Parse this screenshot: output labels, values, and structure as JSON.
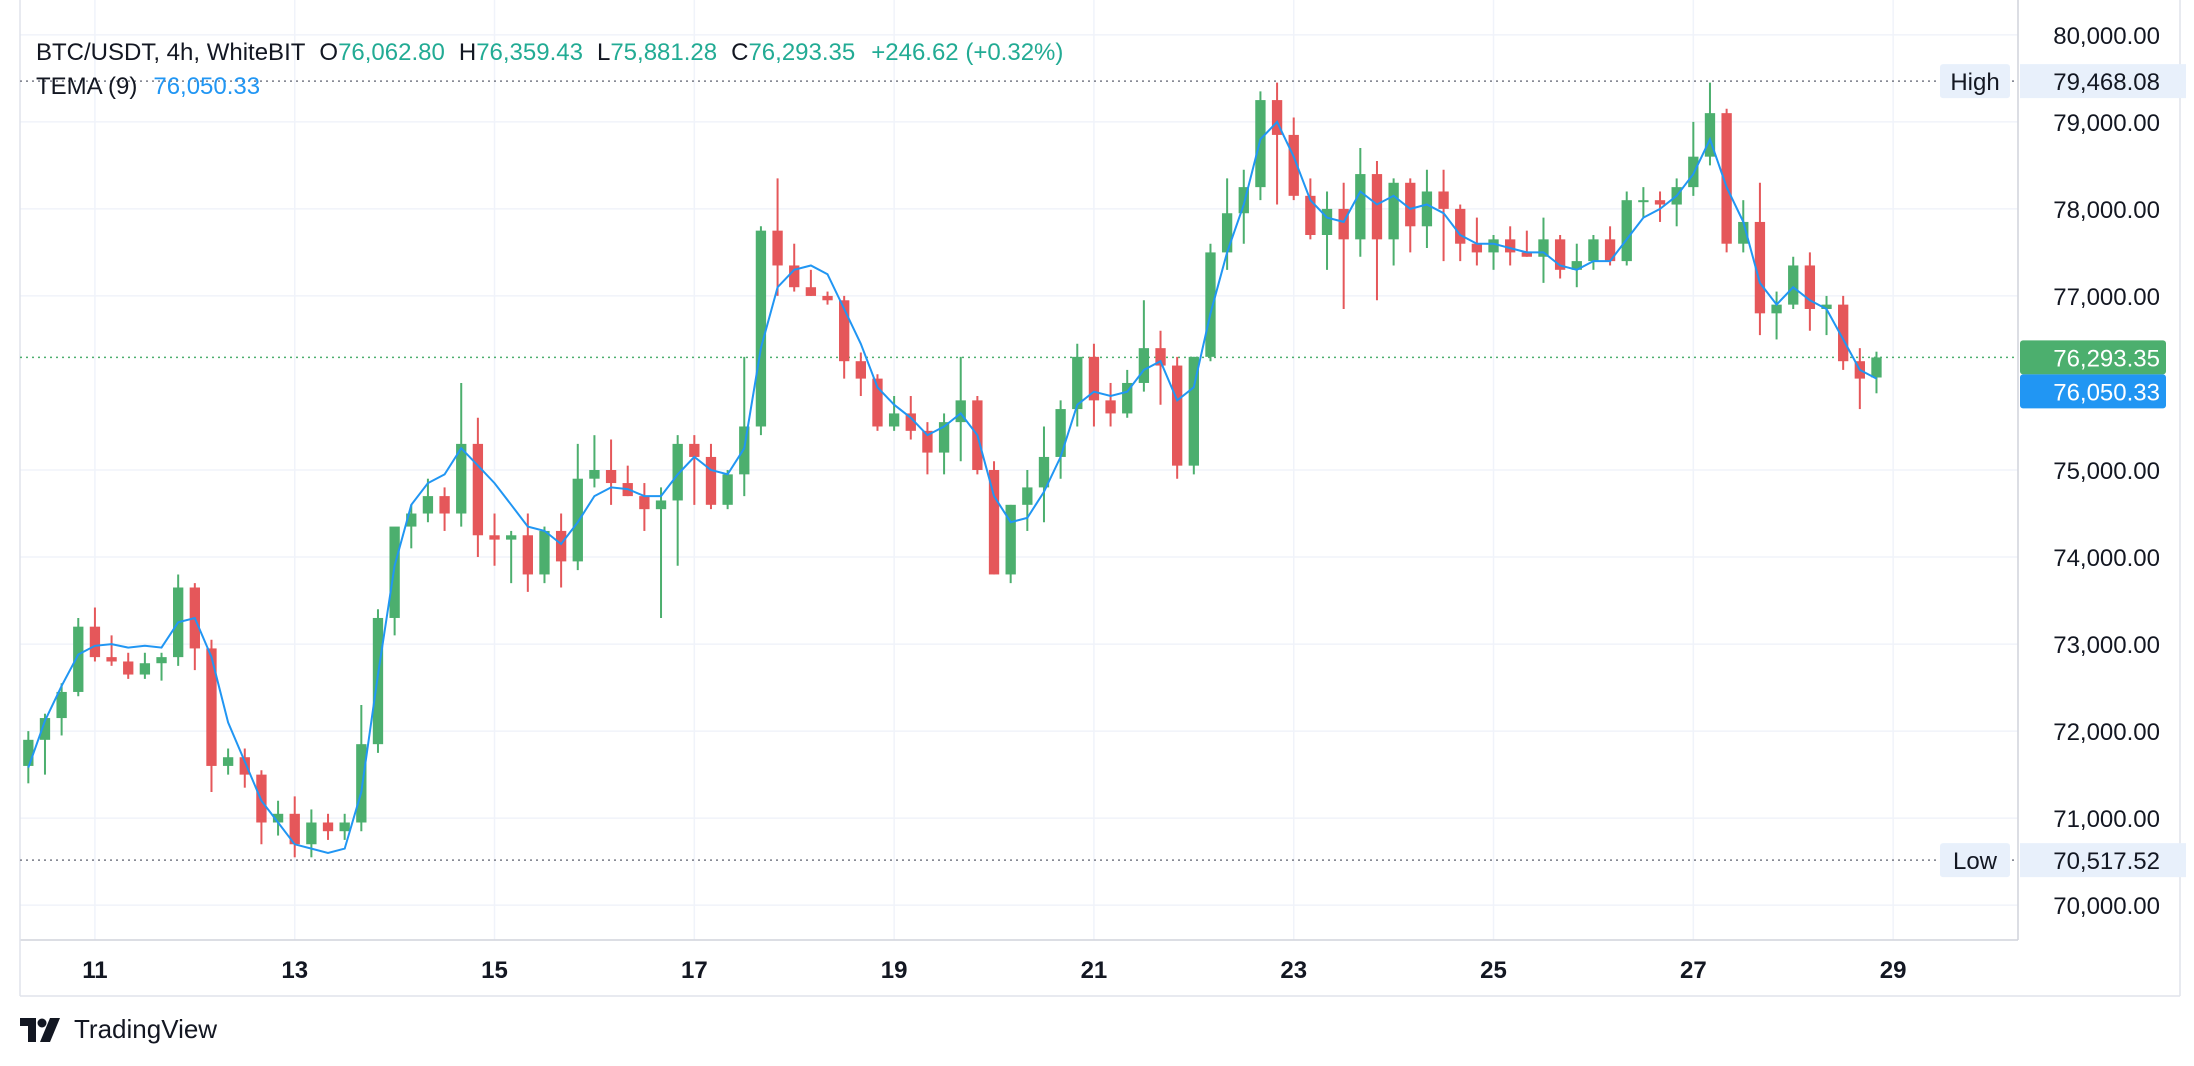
{
  "legend": {
    "symbol": "BTC/USDT, 4h, WhiteBIT",
    "open_label": "O",
    "open": "76,062.80",
    "high_label": "H",
    "high": "76,359.43",
    "low_label": "L",
    "low": "75,881.28",
    "close_label": "C",
    "close": "76,293.35",
    "change": "+246.62 (+0.32%)",
    "indicator_name": "TEMA (9)",
    "indicator_value": "76,050.33"
  },
  "brand": {
    "name": "TradingView",
    "icon": "tradingview-logo-icon"
  },
  "colors": {
    "up": "#4caf6e",
    "down": "#e5575a",
    "tema": "#2196f3",
    "close_tag": "#4caf6e",
    "tema_tag": "#2196f3",
    "hilo_tag_bg": "#e8f0fb",
    "grid": "#f0f3fa",
    "text": "#131722"
  },
  "chart_data": {
    "type": "candlestick",
    "timeframe": "4h",
    "x_tick_labels": [
      "11",
      "13",
      "15",
      "17",
      "19",
      "21",
      "23",
      "25",
      "27",
      "29"
    ],
    "y_tick_labels": [
      "80,000.00",
      "79,000.00",
      "78,000.00",
      "77,000.00",
      "75,000.00",
      "74,000.00",
      "73,000.00",
      "72,000.00",
      "71,000.00",
      "70,000.00"
    ],
    "ylim": [
      69600,
      80400
    ],
    "xlim_bars": [
      0,
      120
    ],
    "grid": true,
    "series": [
      {
        "name": "BTC/USDT",
        "type": "ohlc",
        "ohlc": [
          [
            71600,
            72000,
            71400,
            71900
          ],
          [
            71900,
            72200,
            71500,
            72150
          ],
          [
            72150,
            72550,
            71950,
            72450
          ],
          [
            72450,
            73300,
            72400,
            73200
          ],
          [
            73200,
            73420,
            72800,
            72850
          ],
          [
            72850,
            73100,
            72750,
            72800
          ],
          [
            72800,
            72900,
            72600,
            72650
          ],
          [
            72650,
            72900,
            72600,
            72780
          ],
          [
            72780,
            72900,
            72580,
            72850
          ],
          [
            72850,
            73800,
            72750,
            73650
          ],
          [
            73650,
            73700,
            72700,
            72950
          ],
          [
            72950,
            73050,
            71300,
            71600
          ],
          [
            71600,
            71800,
            71500,
            71700
          ],
          [
            71700,
            71800,
            71350,
            71500
          ],
          [
            71500,
            71550,
            70700,
            70950
          ],
          [
            70950,
            71200,
            70800,
            71050
          ],
          [
            71050,
            71250,
            70550,
            70700
          ],
          [
            70700,
            71100,
            70550,
            70950
          ],
          [
            70950,
            71050,
            70750,
            70850
          ],
          [
            70850,
            71050,
            70750,
            70950
          ],
          [
            70950,
            72300,
            70850,
            71850
          ],
          [
            71850,
            73400,
            71750,
            73300
          ],
          [
            73300,
            74300,
            73100,
            74350
          ],
          [
            74350,
            74600,
            74100,
            74500
          ],
          [
            74500,
            74900,
            74400,
            74700
          ],
          [
            74700,
            74800,
            74300,
            74500
          ],
          [
            74500,
            76000,
            74350,
            75300
          ],
          [
            75300,
            75600,
            74000,
            74250
          ],
          [
            74250,
            74500,
            73900,
            74200
          ],
          [
            74200,
            74300,
            73700,
            74250
          ],
          [
            74250,
            74500,
            73600,
            73800
          ],
          [
            73800,
            74350,
            73700,
            74300
          ],
          [
            74300,
            74500,
            73650,
            73950
          ],
          [
            73950,
            75300,
            73850,
            74900
          ],
          [
            74900,
            75400,
            74800,
            75000
          ],
          [
            75000,
            75350,
            74600,
            74850
          ],
          [
            74850,
            75050,
            74700,
            74700
          ],
          [
            74700,
            74850,
            74300,
            74550
          ],
          [
            74550,
            74800,
            73300,
            74650
          ],
          [
            74650,
            75400,
            73900,
            75300
          ],
          [
            75300,
            75400,
            74600,
            75150
          ],
          [
            75150,
            75300,
            74550,
            74600
          ],
          [
            74600,
            75000,
            74550,
            74950
          ],
          [
            74950,
            76300,
            74700,
            75500
          ],
          [
            75500,
            77800,
            75400,
            77750
          ],
          [
            77750,
            78350,
            77000,
            77350
          ],
          [
            77350,
            77600,
            77050,
            77100
          ],
          [
            77100,
            77300,
            77000,
            77000
          ],
          [
            77000,
            77050,
            76900,
            76950
          ],
          [
            76950,
            77000,
            76050,
            76250
          ],
          [
            76250,
            76350,
            75850,
            76050
          ],
          [
            76050,
            76100,
            75450,
            75500
          ],
          [
            75500,
            75850,
            75450,
            75650
          ],
          [
            75650,
            75850,
            75350,
            75450
          ],
          [
            75450,
            75550,
            74950,
            75200
          ],
          [
            75200,
            75650,
            74950,
            75550
          ],
          [
            75550,
            76300,
            75100,
            75800
          ],
          [
            75800,
            75850,
            74950,
            75000
          ],
          [
            75000,
            75100,
            73800,
            73800
          ],
          [
            73800,
            74600,
            73700,
            74600
          ],
          [
            74600,
            75000,
            74300,
            74800
          ],
          [
            74800,
            75500,
            74400,
            75150
          ],
          [
            75150,
            75800,
            74900,
            75700
          ],
          [
            75700,
            76450,
            75500,
            76300
          ],
          [
            76300,
            76450,
            75500,
            75800
          ],
          [
            75800,
            76000,
            75500,
            75650
          ],
          [
            75650,
            76150,
            75600,
            76000
          ],
          [
            76000,
            76950,
            75900,
            76400
          ],
          [
            76400,
            76600,
            75750,
            76200
          ],
          [
            76200,
            76300,
            74900,
            75050
          ],
          [
            75050,
            76300,
            74950,
            76300
          ],
          [
            76300,
            77600,
            76250,
            77500
          ],
          [
            77500,
            78350,
            77300,
            77950
          ],
          [
            77950,
            78450,
            77600,
            78250
          ],
          [
            78250,
            79350,
            78100,
            79250
          ],
          [
            79250,
            79450,
            78050,
            78850
          ],
          [
            78850,
            79050,
            78100,
            78150
          ],
          [
            78150,
            78350,
            77650,
            77700
          ],
          [
            77700,
            78200,
            77300,
            78000
          ],
          [
            78000,
            78300,
            76850,
            77650
          ],
          [
            77650,
            78700,
            77450,
            78400
          ],
          [
            78400,
            78550,
            76950,
            77650
          ],
          [
            77650,
            78350,
            77350,
            78300
          ],
          [
            78300,
            78350,
            77500,
            77800
          ],
          [
            77800,
            78450,
            77550,
            78200
          ],
          [
            78200,
            78450,
            77400,
            78000
          ],
          [
            78000,
            78050,
            77400,
            77600
          ],
          [
            77600,
            77900,
            77350,
            77500
          ],
          [
            77500,
            77700,
            77300,
            77650
          ],
          [
            77650,
            77800,
            77350,
            77500
          ],
          [
            77500,
            77750,
            77450,
            77450
          ],
          [
            77450,
            77900,
            77150,
            77650
          ],
          [
            77650,
            77700,
            77200,
            77300
          ],
          [
            77300,
            77600,
            77100,
            77400
          ],
          [
            77400,
            77700,
            77300,
            77650
          ],
          [
            77650,
            77800,
            77350,
            77400
          ],
          [
            77400,
            78200,
            77350,
            78100
          ],
          [
            78100,
            78250,
            77900,
            78100
          ],
          [
            78100,
            78200,
            77850,
            78050
          ],
          [
            78050,
            78350,
            77800,
            78250
          ],
          [
            78250,
            79000,
            78150,
            78600
          ],
          [
            78600,
            79450,
            78500,
            79100
          ],
          [
            79100,
            79150,
            77500,
            77600
          ],
          [
            77600,
            78100,
            77500,
            77850
          ],
          [
            77850,
            78300,
            76550,
            76800
          ],
          [
            76800,
            77050,
            76500,
            76900
          ],
          [
            76900,
            77450,
            76850,
            77350
          ],
          [
            77350,
            77500,
            76600,
            76850
          ],
          [
            76850,
            77000,
            76550,
            76900
          ],
          [
            76900,
            77000,
            76150,
            76250
          ],
          [
            76250,
            76400,
            75700,
            76050
          ],
          [
            76062.8,
            76359.43,
            75881.28,
            76293.35
          ]
        ]
      },
      {
        "name": "TEMA (9)",
        "type": "line",
        "values": [
          71580,
          72120,
          72520,
          72880,
          72980,
          73000,
          72960,
          72980,
          72960,
          73250,
          73300,
          72850,
          72100,
          71650,
          71200,
          70950,
          70700,
          70650,
          70600,
          70650,
          71300,
          72650,
          73900,
          74600,
          74850,
          74950,
          75250,
          75050,
          74850,
          74600,
          74350,
          74300,
          74150,
          74400,
          74700,
          74800,
          74780,
          74700,
          74700,
          74950,
          75150,
          75000,
          74950,
          75250,
          76400,
          77100,
          77300,
          77350,
          77250,
          76850,
          76450,
          75950,
          75750,
          75600,
          75400,
          75500,
          75650,
          75400,
          74700,
          74400,
          74450,
          74750,
          75150,
          75750,
          75900,
          75850,
          75900,
          76150,
          76250,
          75800,
          75950,
          76800,
          77500,
          78050,
          78800,
          79000,
          78600,
          78100,
          77900,
          77850,
          78200,
          78050,
          78150,
          78000,
          78050,
          77950,
          77700,
          77600,
          77600,
          77550,
          77500,
          77500,
          77350,
          77300,
          77400,
          77400,
          77650,
          77900,
          78000,
          78150,
          78400,
          78800,
          78250,
          77850,
          77150,
          76900,
          77100,
          76950,
          76850,
          76500,
          76150,
          76050
        ]
      }
    ],
    "high": {
      "label": "High",
      "value": "79,468.08",
      "price": 79468.08
    },
    "low": {
      "label": "Low",
      "value": "70,517.52",
      "price": 70517.52
    },
    "last_price_tag": {
      "value": "76,293.35",
      "price": 76293.35
    },
    "indicator_tag": {
      "value": "76,050.33",
      "price": 76050.33
    }
  }
}
